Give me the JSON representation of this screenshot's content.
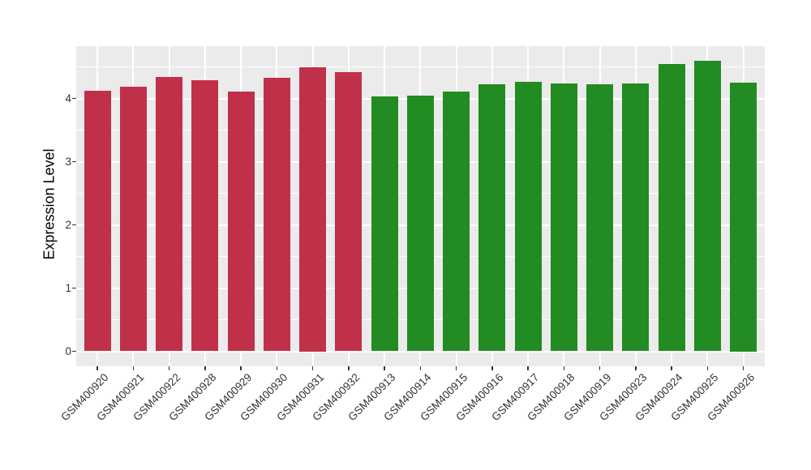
{
  "figure": {
    "background_color": "#FFFFFF",
    "panel_background_color": "#EBEBEB",
    "gridline_color": "#FFFFFF",
    "axis_text_color": "#333333",
    "axis_title_color": "#000000"
  },
  "chart_data": {
    "type": "bar",
    "title": "",
    "xlabel": "",
    "ylabel": "Expression Level",
    "ylim": [
      0,
      4.83
    ],
    "yticks": [
      0,
      1,
      2,
      3,
      4
    ],
    "grid": true,
    "legend_position": "none",
    "categories": [
      "GSM400920",
      "GSM400921",
      "GSM400922",
      "GSM400928",
      "GSM400929",
      "GSM400930",
      "GSM400931",
      "GSM400932",
      "GSM400913",
      "GSM400914",
      "GSM400915",
      "GSM400916",
      "GSM400917",
      "GSM400918",
      "GSM400919",
      "GSM400923",
      "GSM400924",
      "GSM400925",
      "GSM400926"
    ],
    "values": [
      4.12,
      4.18,
      4.34,
      4.29,
      4.11,
      4.33,
      4.5,
      4.42,
      4.03,
      4.05,
      4.11,
      4.23,
      4.26,
      4.24,
      4.23,
      4.24,
      4.55,
      4.6,
      4.25
    ],
    "bar_groups": [
      "red",
      "red",
      "red",
      "red",
      "red",
      "red",
      "red",
      "red",
      "green",
      "green",
      "green",
      "green",
      "green",
      "green",
      "green",
      "green",
      "green",
      "green",
      "green"
    ],
    "group_colors": {
      "red": "#C13049",
      "green": "#228B22"
    }
  }
}
